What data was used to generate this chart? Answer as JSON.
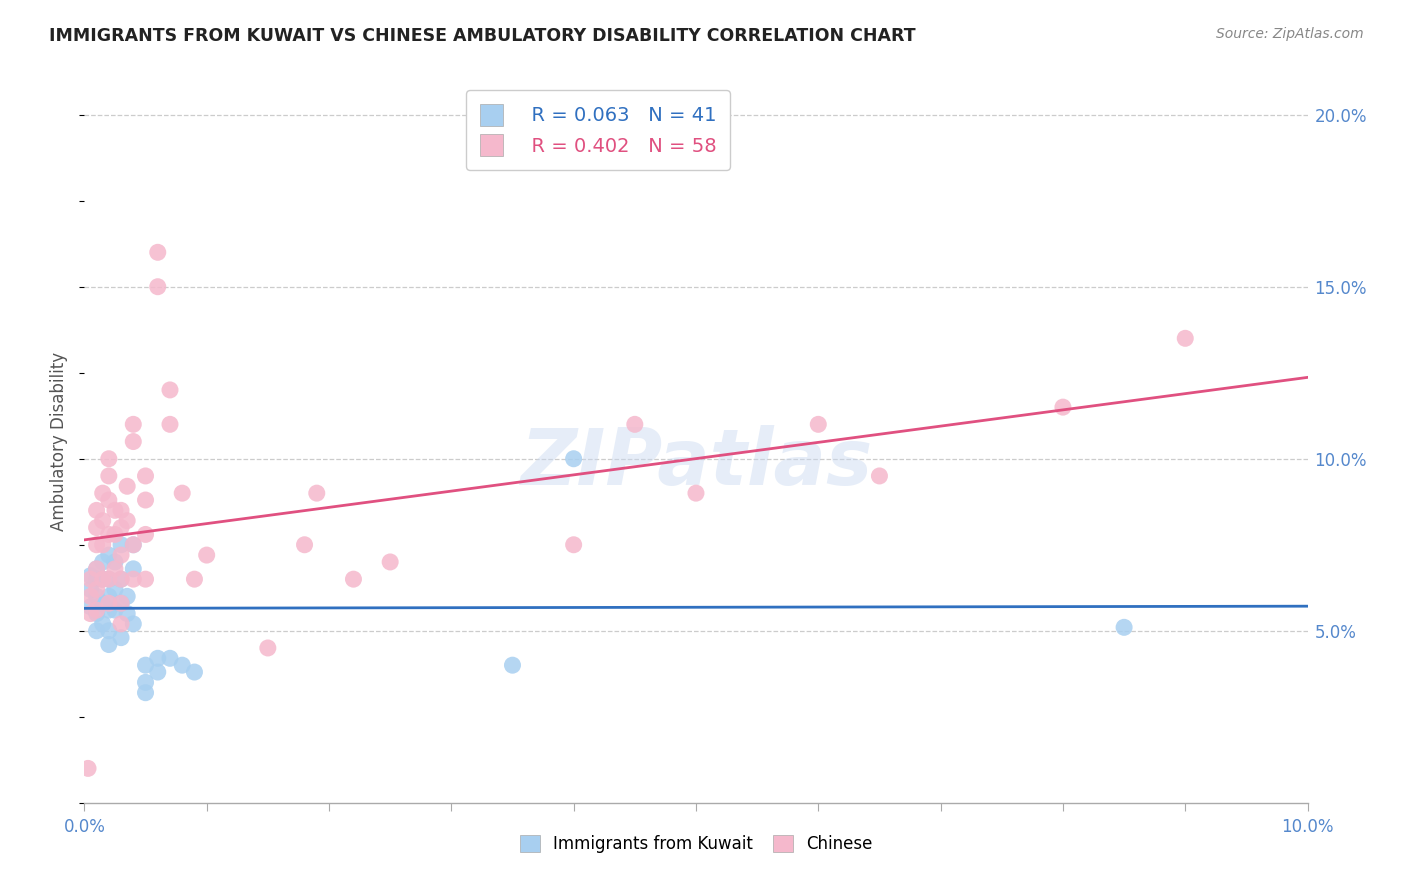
{
  "title": "IMMIGRANTS FROM KUWAIT VS CHINESE AMBULATORY DISABILITY CORRELATION CHART",
  "source": "Source: ZipAtlas.com",
  "ylabel": "Ambulatory Disability",
  "x_min": 0.0,
  "x_max": 0.1,
  "y_min": 0.0,
  "y_max": 0.21,
  "series1_label": "Immigrants from Kuwait",
  "series1_R": "0.063",
  "series1_N": "41",
  "series1_color": "#a8cff0",
  "series1_line_color": "#3070c0",
  "series2_label": "Chinese",
  "series2_R": "0.402",
  "series2_N": "58",
  "series2_color": "#f5b8cc",
  "series2_line_color": "#e05080",
  "watermark": "ZIPatlas",
  "blue_points_x": [
    0.0005,
    0.0005,
    0.0005,
    0.001,
    0.001,
    0.001,
    0.001,
    0.001,
    0.0015,
    0.0015,
    0.0015,
    0.0015,
    0.002,
    0.002,
    0.002,
    0.002,
    0.002,
    0.002,
    0.0025,
    0.0025,
    0.0025,
    0.003,
    0.003,
    0.003,
    0.003,
    0.0035,
    0.0035,
    0.004,
    0.004,
    0.004,
    0.005,
    0.005,
    0.005,
    0.006,
    0.006,
    0.007,
    0.008,
    0.009,
    0.035,
    0.04,
    0.085
  ],
  "blue_points_y": [
    0.066,
    0.062,
    0.057,
    0.068,
    0.065,
    0.06,
    0.055,
    0.05,
    0.07,
    0.065,
    0.058,
    0.052,
    0.072,
    0.065,
    0.06,
    0.056,
    0.05,
    0.046,
    0.07,
    0.062,
    0.056,
    0.075,
    0.065,
    0.058,
    0.048,
    0.06,
    0.055,
    0.075,
    0.068,
    0.052,
    0.04,
    0.035,
    0.032,
    0.042,
    0.038,
    0.042,
    0.04,
    0.038,
    0.04,
    0.1,
    0.051
  ],
  "pink_points_x": [
    0.0003,
    0.0005,
    0.0005,
    0.0005,
    0.001,
    0.001,
    0.001,
    0.001,
    0.001,
    0.001,
    0.0015,
    0.0015,
    0.0015,
    0.0015,
    0.002,
    0.002,
    0.002,
    0.002,
    0.002,
    0.002,
    0.0025,
    0.0025,
    0.0025,
    0.003,
    0.003,
    0.003,
    0.003,
    0.003,
    0.003,
    0.0035,
    0.0035,
    0.004,
    0.004,
    0.004,
    0.004,
    0.005,
    0.005,
    0.005,
    0.005,
    0.006,
    0.006,
    0.007,
    0.007,
    0.008,
    0.009,
    0.01,
    0.015,
    0.018,
    0.019,
    0.022,
    0.025,
    0.04,
    0.045,
    0.05,
    0.06,
    0.065,
    0.08,
    0.09
  ],
  "pink_points_y": [
    0.01,
    0.065,
    0.06,
    0.055,
    0.085,
    0.08,
    0.075,
    0.068,
    0.062,
    0.056,
    0.09,
    0.082,
    0.075,
    0.065,
    0.1,
    0.095,
    0.088,
    0.078,
    0.065,
    0.058,
    0.085,
    0.078,
    0.068,
    0.085,
    0.08,
    0.072,
    0.065,
    0.058,
    0.052,
    0.092,
    0.082,
    0.11,
    0.105,
    0.075,
    0.065,
    0.095,
    0.088,
    0.078,
    0.065,
    0.16,
    0.15,
    0.12,
    0.11,
    0.09,
    0.065,
    0.072,
    0.045,
    0.075,
    0.09,
    0.065,
    0.07,
    0.075,
    0.11,
    0.09,
    0.11,
    0.095,
    0.115,
    0.135
  ]
}
